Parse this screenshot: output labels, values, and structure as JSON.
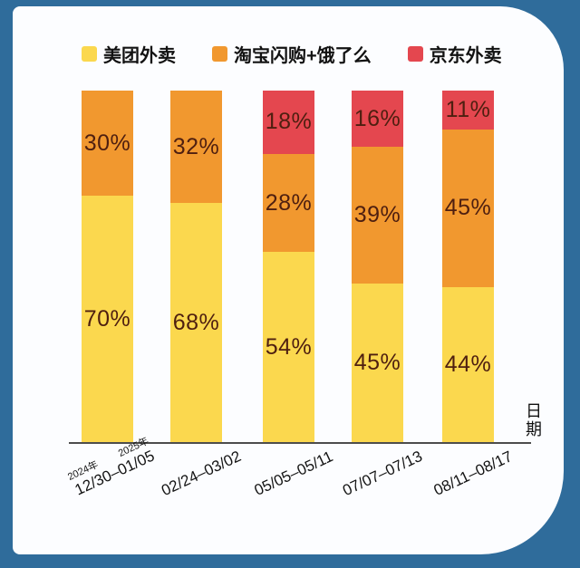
{
  "page": {
    "background_color": "#2F6C9B",
    "card_color": "#FCFDFF"
  },
  "chart_data": {
    "type": "bar",
    "stacked": true,
    "orientation": "vertical",
    "legend_position": "top",
    "x_axis_label": "日期",
    "ylim": [
      0,
      100
    ],
    "value_suffix": "%",
    "label_color": "#4E1F10",
    "categories": [
      {
        "label": "12/30–01/05",
        "years": [
          "2024年",
          "2025年"
        ]
      },
      {
        "label": "02/24–03/02"
      },
      {
        "label": "05/05–05/11"
      },
      {
        "label": "07/07–07/13"
      },
      {
        "label": "08/11–08/17"
      }
    ],
    "series": [
      {
        "name": "美团外卖",
        "color": "#FBD84E",
        "values": [
          70,
          68,
          54,
          45,
          44
        ]
      },
      {
        "name": "淘宝闪购+饿了么",
        "color": "#F1982F",
        "values": [
          30,
          32,
          28,
          39,
          45
        ]
      },
      {
        "name": "京东外卖",
        "color": "#E4474F",
        "values": [
          null,
          null,
          18,
          16,
          11
        ]
      }
    ]
  }
}
